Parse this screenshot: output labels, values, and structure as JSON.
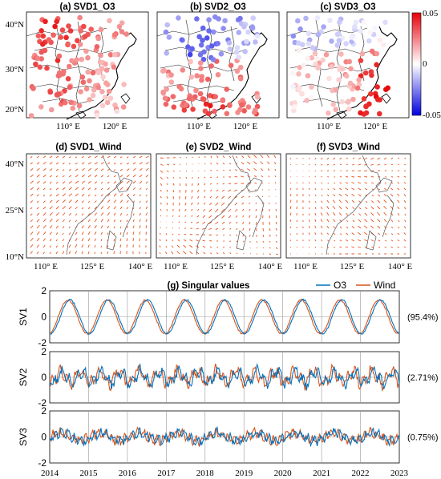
{
  "chart_data": [
    {
      "type": "scatter",
      "panel": "map_o3",
      "colorbar": {
        "max": 0.05,
        "min": -0.05,
        "mid": 0,
        "labels": [
          "0.05",
          "0",
          "-0.05"
        ]
      },
      "lat_ticks": [
        "20°N",
        "30°N",
        "40°N"
      ],
      "lon_ticks": [
        "110° E",
        "120° E"
      ],
      "panels": [
        {
          "title": "(a) SVD1_O3"
        },
        {
          "title": "(b) SVD2_O3"
        },
        {
          "title": "(c) SVD3_O3"
        }
      ]
    },
    {
      "type": "vector",
      "panel": "map_wind",
      "lat_ticks": [
        "10°N",
        "25°N",
        "40°N"
      ],
      "lon_ticks": [
        "110° E",
        "125° E",
        "140° E"
      ],
      "panels": [
        {
          "title": "(d) SVD1_Wind"
        },
        {
          "title": "(e) SVD2_Wind"
        },
        {
          "title": "(f) SVD3_Wind"
        }
      ]
    },
    {
      "type": "line",
      "title": "(g) Singular values",
      "x_ticks": [
        "2014",
        "2015",
        "2016",
        "2017",
        "2018",
        "2019",
        "2020",
        "2021",
        "2022",
        "2023"
      ],
      "xlim": [
        2014,
        2023
      ],
      "ylim": [
        -2,
        2
      ],
      "y_ticks": [
        "-2",
        "0",
        "2"
      ],
      "series_names": [
        "O3",
        "Wind"
      ],
      "colors": {
        "o3": "#0072bd",
        "wind": "#d95319"
      },
      "legend": "top-right",
      "rows": [
        {
          "ylabel": "SV1",
          "percent": "(95.4%)",
          "mode": 1
        },
        {
          "ylabel": "SV2",
          "percent": "(2.71%)",
          "mode": 2
        },
        {
          "ylabel": "SV3",
          "percent": "(0.75%)",
          "mode": 3
        }
      ]
    }
  ]
}
